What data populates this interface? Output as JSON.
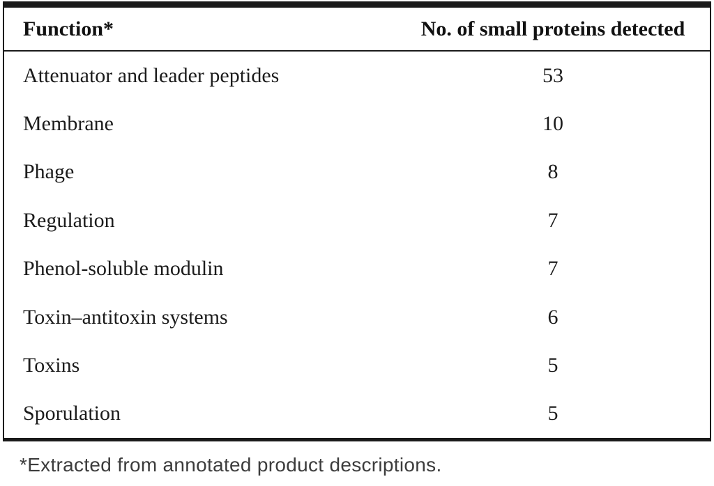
{
  "table": {
    "columns": {
      "function": "Function*",
      "count": "No. of small proteins detected"
    },
    "rows": [
      {
        "function": "Attenuator and leader peptides",
        "count": "53"
      },
      {
        "function": "Membrane",
        "count": "10"
      },
      {
        "function": "Phage",
        "count": "8"
      },
      {
        "function": "Regulation",
        "count": "7"
      },
      {
        "function": "Phenol-soluble modulin",
        "count": "7"
      },
      {
        "function": "Toxin–antitoxin systems",
        "count": "6"
      },
      {
        "function": "Toxins",
        "count": "5"
      },
      {
        "function": "Sporulation",
        "count": "5"
      }
    ],
    "footnote": "*Extracted from annotated product descriptions."
  },
  "colors": {
    "background": "#ffffff",
    "text": "#1c1c1c",
    "border": "#1a1a1a",
    "footnote_text": "#3c3c3c"
  }
}
